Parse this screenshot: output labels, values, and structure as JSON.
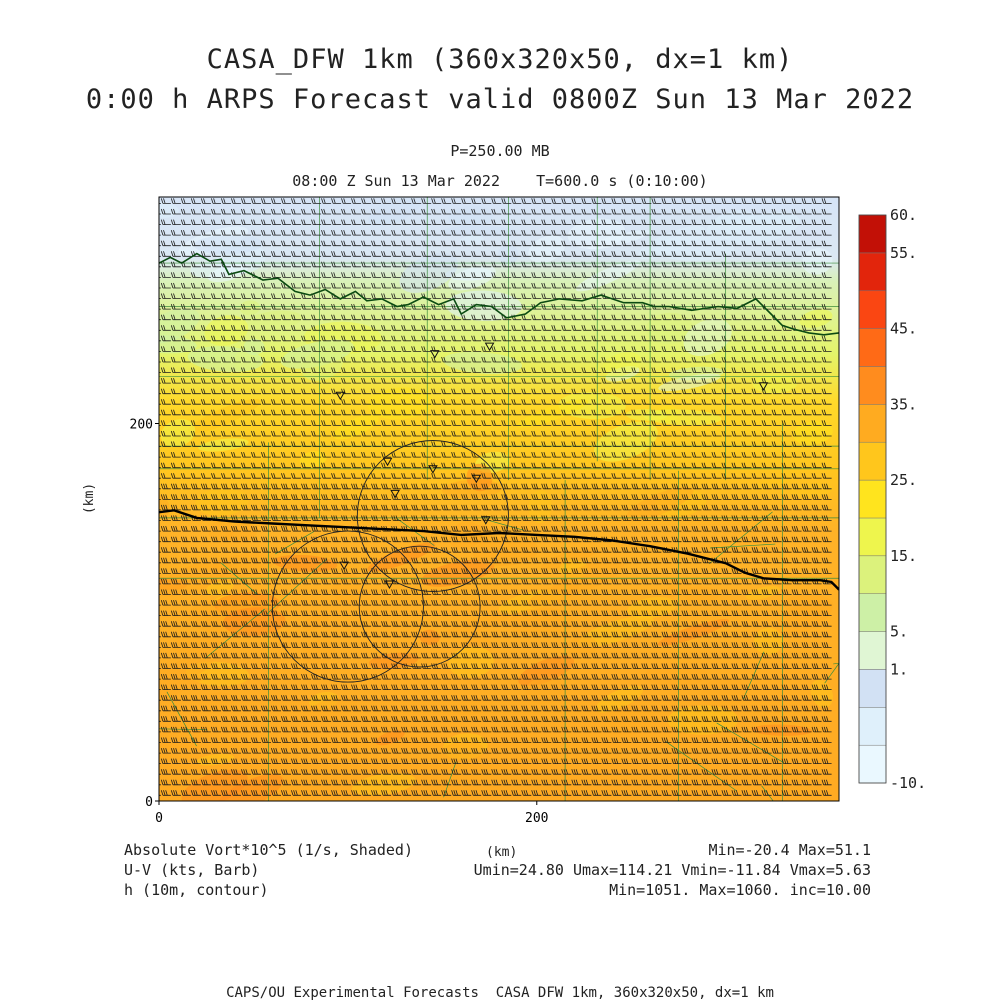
{
  "header": {
    "title_line1": "CASA_DFW 1km (360x320x50, dx=1 km)",
    "title_line2": "0:00 h ARPS Forecast valid 0800Z Sun 13 Mar 2022",
    "level": "P=250.00 MB",
    "time_info": "08:00 Z Sun 13 Mar 2022    T=600.0 s (0:10:00)"
  },
  "footer": {
    "field1_label": "Absolute Vort*10^5 (1/s, Shaded)",
    "field1_range": "Min=-20.4 Max=51.1",
    "field2_label": "U-V (kts, Barb)",
    "field2_range": "Umin=24.80 Umax=114.21 Vmin=-11.84 Vmax=5.63",
    "field3_label": "h (10m, contour)",
    "field3_range": "Min=1051. Max=1060. inc=10.00",
    "credit": "CAPS/OU Experimental Forecasts  CASA DFW 1km, 360x320x50, dx=1 km"
  },
  "chart_data": {
    "type": "heatmap",
    "xlabel": "(km)",
    "ylabel": "(km)",
    "xlim": [
      0,
      360
    ],
    "ylim": [
      0,
      320
    ],
    "x_ticks": [
      0,
      200
    ],
    "y_ticks": [
      0,
      200
    ],
    "colorbar": {
      "tick_labels": [
        "60.",
        "55.",
        "45.",
        "35.",
        "25.",
        "15.",
        "5.",
        "1.",
        "-10."
      ],
      "levels": [
        -10,
        -5,
        0,
        1,
        5,
        10,
        15,
        20,
        25,
        30,
        35,
        40,
        45,
        50,
        55,
        60
      ],
      "colors": [
        "#eaf8ff",
        "#dff0fb",
        "#d2e1f4",
        "#e0f6d4",
        "#cdf0a6",
        "#dcf27c",
        "#eef54d",
        "#ffe41e",
        "#ffc61c",
        "#ffab20",
        "#ff8c1e",
        "#ff6a16",
        "#fa4612",
        "#e2250c",
        "#c21006"
      ]
    },
    "vorticity_bands": [
      {
        "y_from": 262,
        "y_to": 320,
        "level": 1
      },
      {
        "y_from": 210,
        "y_to": 262,
        "level": 12
      },
      {
        "y_from": 170,
        "y_to": 210,
        "level": 22
      },
      {
        "y_from": 0,
        "y_to": 170,
        "level": 30
      }
    ],
    "height_contour_value": 1060,
    "station_markers_km": [
      [
        146,
        237
      ],
      [
        175,
        241
      ],
      [
        96,
        215
      ],
      [
        320,
        220
      ],
      [
        121,
        180
      ],
      [
        145,
        176
      ],
      [
        168,
        171
      ],
      [
        125,
        163
      ],
      [
        173,
        149
      ],
      [
        98,
        125
      ],
      [
        122,
        115
      ]
    ],
    "range_rings_km": [
      {
        "cx": 145,
        "cy": 151,
        "r": 40
      },
      {
        "cx": 100,
        "cy": 103,
        "r": 40
      },
      {
        "cx": 138,
        "cy": 103,
        "r": 32
      }
    ],
    "wind_barbs": {
      "u_range": [
        24.8,
        114.21
      ],
      "v_range": [
        -11.84,
        5.63
      ],
      "direction": "westerly"
    }
  },
  "colors": {
    "contour": "#0b4a12",
    "county_lines": "#3c8c3c",
    "frame": "#000000",
    "barb": "#1e1e1e"
  }
}
